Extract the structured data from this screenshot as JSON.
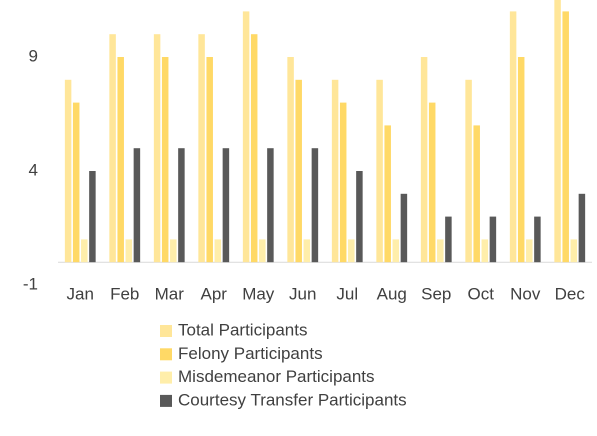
{
  "chart_data": {
    "type": "bar",
    "categories": [
      "Jan",
      "Feb",
      "Mar",
      "Apr",
      "May",
      "Jun",
      "Jul",
      "Aug",
      "Sep",
      "Oct",
      "Nov",
      "Dec"
    ],
    "series": [
      {
        "name": "Total Participants",
        "color": "#ffe699",
        "values": [
          8,
          10,
          10,
          10,
          11,
          9,
          8,
          8,
          9,
          8,
          11,
          12
        ]
      },
      {
        "name": "Felony Participants",
        "color": "#ffd966",
        "values": [
          7,
          9,
          9,
          9,
          10,
          8,
          7,
          6,
          7,
          6,
          9,
          11
        ]
      },
      {
        "name": "Misdemeanor Participants",
        "color": "#ffeeaa",
        "values": [
          1,
          1,
          1,
          1,
          1,
          1,
          1,
          1,
          1,
          1,
          1,
          1
        ]
      },
      {
        "name": "Courtesy Transfer Participants",
        "color": "#595959",
        "values": [
          4,
          5,
          5,
          5,
          5,
          5,
          4,
          3,
          2,
          2,
          2,
          3
        ]
      }
    ],
    "ylim": [
      -1,
      11.5
    ],
    "yticks": [
      -1,
      4,
      9
    ],
    "grid": false,
    "legend": "bottom"
  }
}
